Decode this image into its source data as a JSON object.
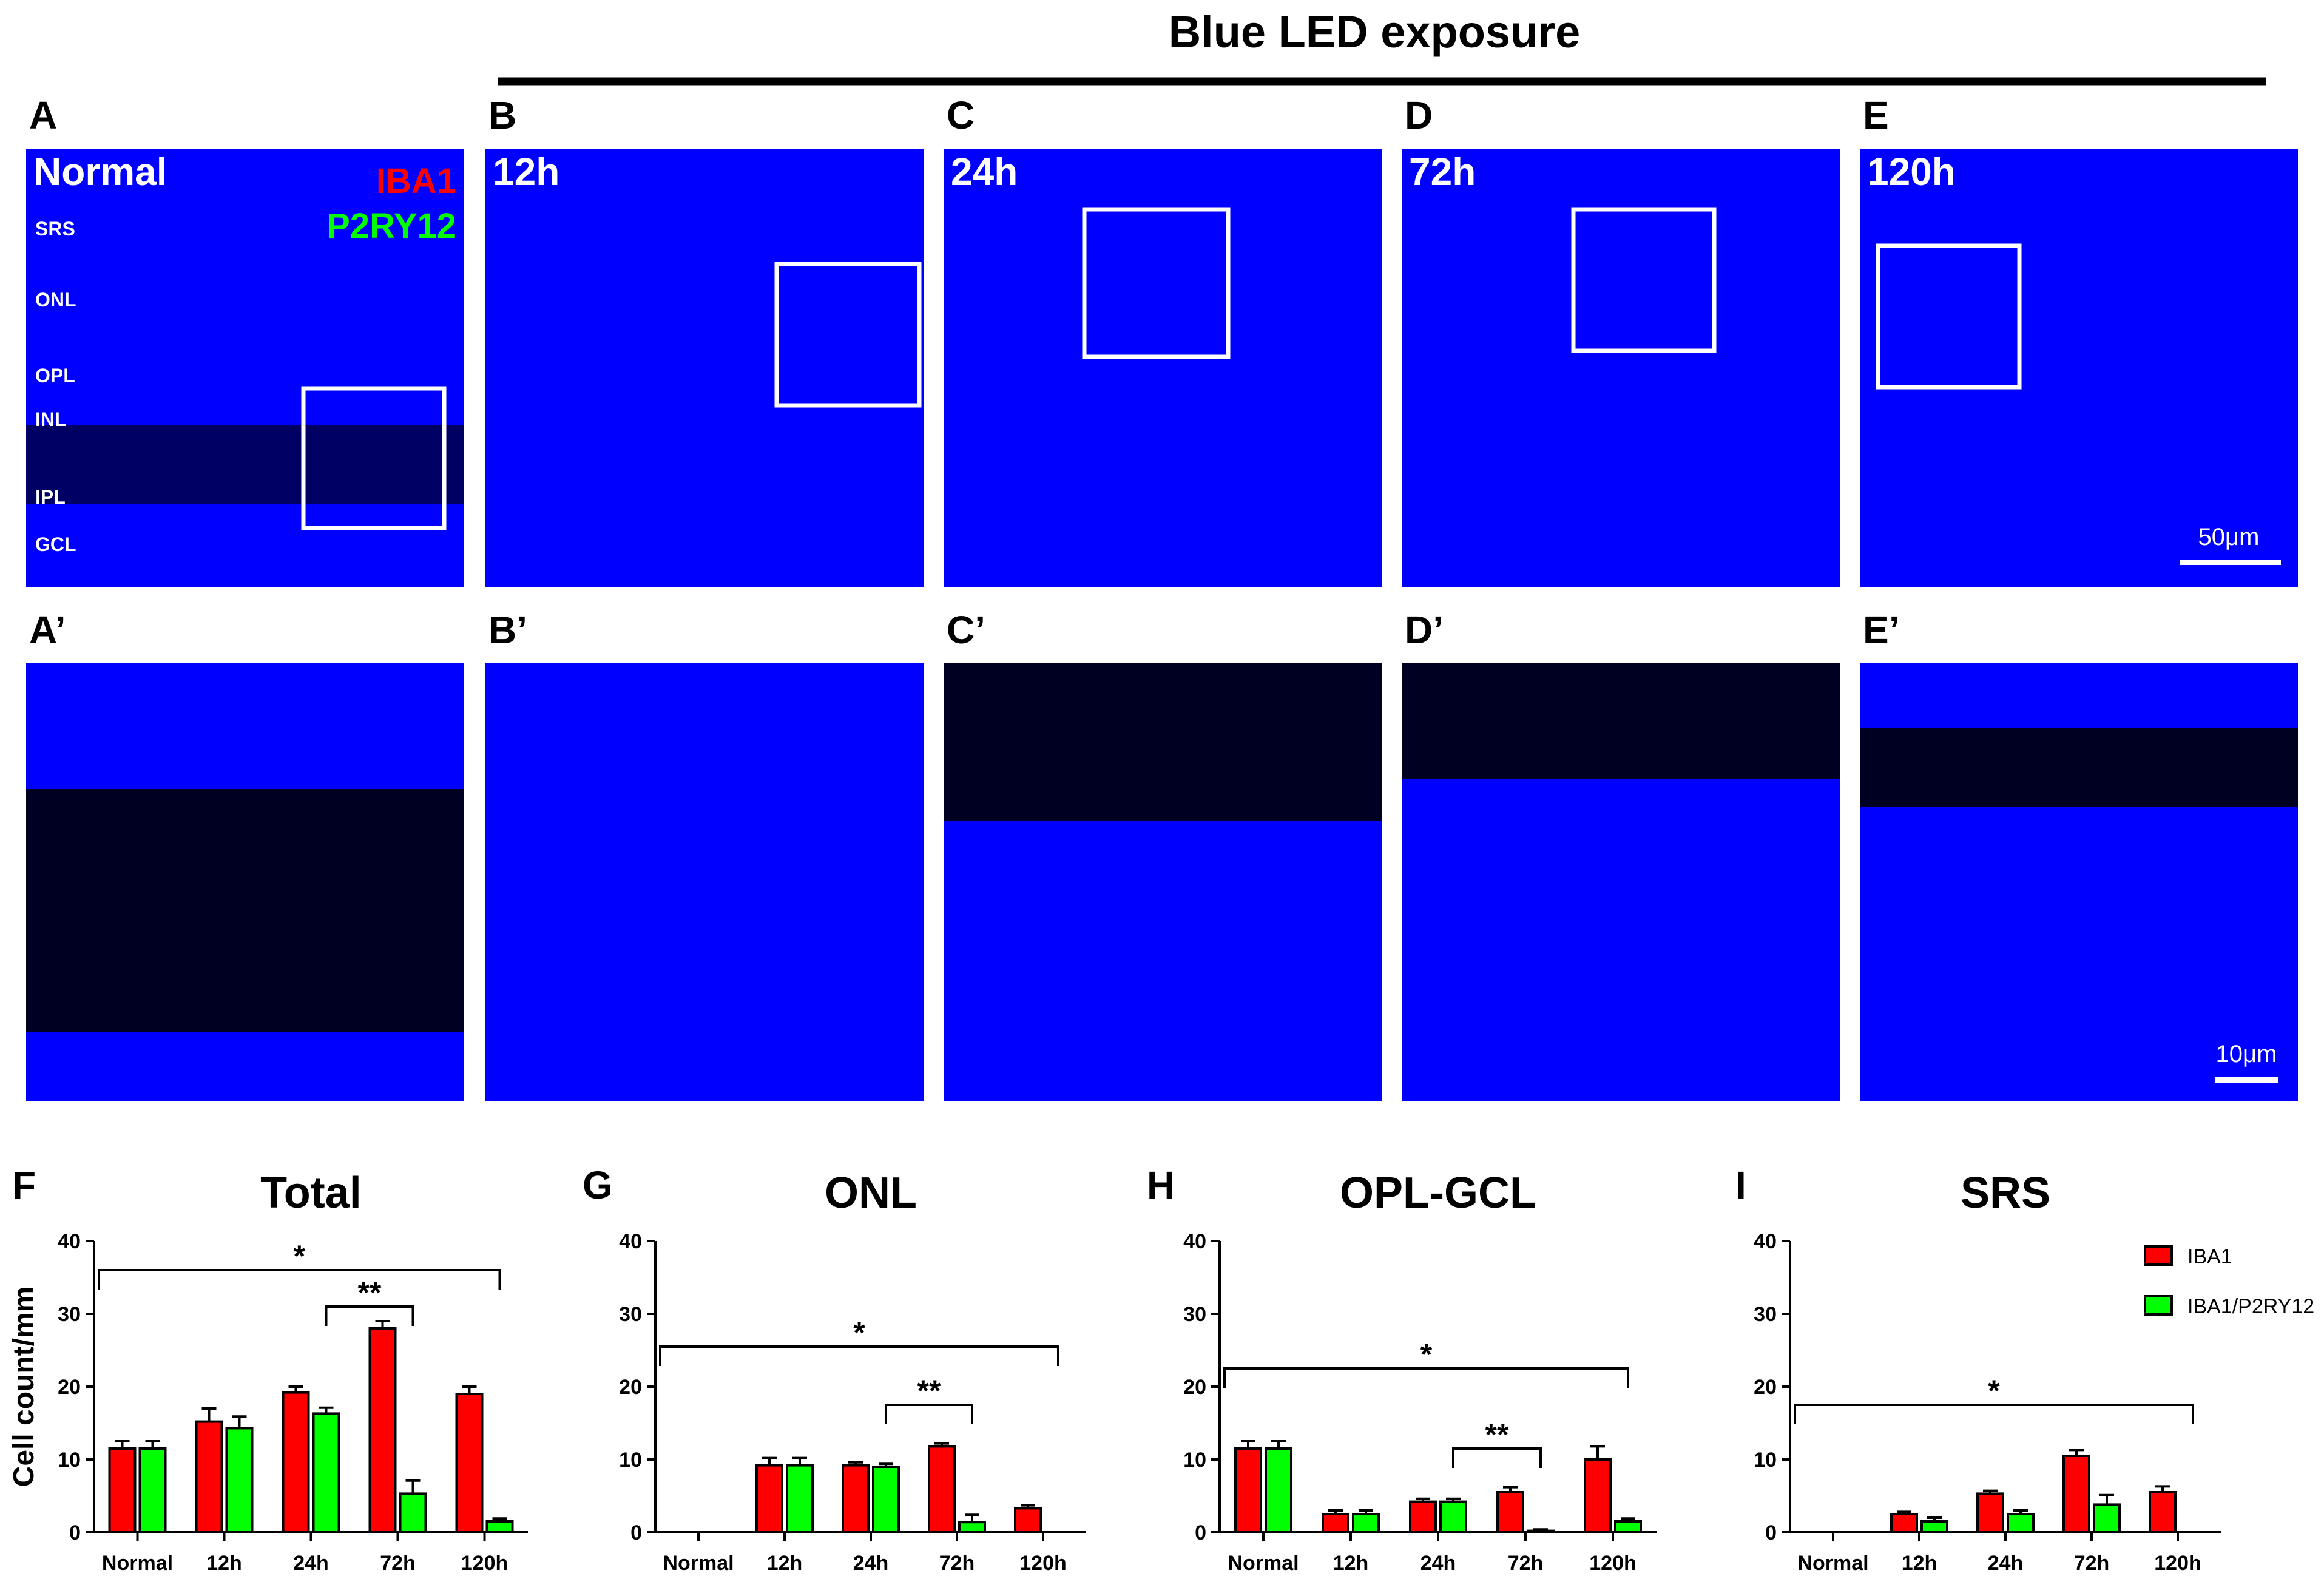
{
  "header": {
    "title": "Blue LED exposure"
  },
  "top_panels": [
    {
      "letter": "A",
      "label": "Normal"
    },
    {
      "letter": "B",
      "label": "12h"
    },
    {
      "letter": "C",
      "label": "24h"
    },
    {
      "letter": "D",
      "label": "72h"
    },
    {
      "letter": "E",
      "label": "120h"
    }
  ],
  "zoom_panels": [
    {
      "letter": "A’"
    },
    {
      "letter": "B’"
    },
    {
      "letter": "C’"
    },
    {
      "letter": "D’"
    },
    {
      "letter": "E’"
    }
  ],
  "stain_legend": {
    "red": "IBA1",
    "green": "P2RY12"
  },
  "layer_labels": [
    "SRS",
    "ONL",
    "OPL",
    "INL",
    "IPL",
    "GCL"
  ],
  "scale_bars": {
    "top": "50μm",
    "zoom": "10μm"
  },
  "colors": {
    "background": "#0000ff",
    "iba1": "#ff0000",
    "iba1_p2ry12": "#00ff00",
    "text": "#000000"
  },
  "chart_data": [
    {
      "panel": "F",
      "type": "bar",
      "title": "Total",
      "ylabel": "Cell count/mm",
      "categories": [
        "Normal",
        "12h",
        "24h",
        "72h",
        "120h"
      ],
      "yticks": [
        "0",
        "10",
        "20",
        "30",
        "40"
      ],
      "ylim": [
        0,
        40
      ],
      "series": [
        {
          "name": "IBA1",
          "values": [
            11.5,
            15.2,
            19.2,
            28.0,
            19.0
          ],
          "errors": [
            1.0,
            1.8,
            0.8,
            1.0,
            1.0
          ]
        },
        {
          "name": "IBA1/P2RY12",
          "values": [
            11.5,
            14.3,
            16.3,
            5.3,
            1.5
          ],
          "errors": [
            1.0,
            1.6,
            0.8,
            1.8,
            0.4
          ]
        }
      ],
      "significance": [
        {
          "label": "*",
          "from": "Normal",
          "to": "120h",
          "y": 36
        },
        {
          "label": "**",
          "from": "24h",
          "to": "72h",
          "y": 31
        }
      ]
    },
    {
      "panel": "G",
      "type": "bar",
      "title": "ONL",
      "ylabel": "",
      "categories": [
        "Normal",
        "12h",
        "24h",
        "72h",
        "120h"
      ],
      "yticks": [
        "0",
        "10",
        "20",
        "30",
        "40"
      ],
      "ylim": [
        0,
        40
      ],
      "series": [
        {
          "name": "IBA1",
          "values": [
            0,
            9.2,
            9.2,
            11.8,
            3.3
          ],
          "errors": [
            0,
            1.0,
            0.4,
            0.4,
            0.4
          ]
        },
        {
          "name": "IBA1/P2RY12",
          "values": [
            0,
            9.2,
            9.0,
            1.4,
            0
          ],
          "errors": [
            0,
            1.0,
            0.4,
            1.0,
            0
          ]
        }
      ],
      "significance": [
        {
          "label": "*",
          "from": "Normal",
          "to": "120h",
          "y": 25.5
        },
        {
          "label": "**",
          "from": "24h",
          "to": "72h",
          "y": 17.5
        }
      ]
    },
    {
      "panel": "H",
      "type": "bar",
      "title": "OPL-GCL",
      "ylabel": "",
      "categories": [
        "Normal",
        "12h",
        "24h",
        "72h",
        "120h"
      ],
      "yticks": [
        "0",
        "10",
        "20",
        "30",
        "40"
      ],
      "ylim": [
        0,
        40
      ],
      "series": [
        {
          "name": "IBA1",
          "values": [
            11.5,
            2.5,
            4.2,
            5.5,
            10.0
          ],
          "errors": [
            1.0,
            0.5,
            0.4,
            0.7,
            1.8
          ]
        },
        {
          "name": "IBA1/P2RY12",
          "values": [
            11.5,
            2.5,
            4.2,
            0.2,
            1.5
          ],
          "errors": [
            1.0,
            0.5,
            0.4,
            0.2,
            0.4
          ]
        }
      ],
      "significance": [
        {
          "label": "*",
          "from": "Normal",
          "to": "120h",
          "y": 22.5
        },
        {
          "label": "**",
          "from": "24h",
          "to": "72h",
          "y": 11.5
        }
      ]
    },
    {
      "panel": "I",
      "type": "bar",
      "title": "SRS",
      "ylabel": "",
      "categories": [
        "Normal",
        "12h",
        "24h",
        "72h",
        "120h"
      ],
      "yticks": [
        "0",
        "10",
        "20",
        "30",
        "40"
      ],
      "ylim": [
        0,
        40
      ],
      "series": [
        {
          "name": "IBA1",
          "values": [
            0,
            2.5,
            5.3,
            10.5,
            5.5
          ],
          "errors": [
            0,
            0.3,
            0.4,
            0.8,
            0.8
          ]
        },
        {
          "name": "IBA1/P2RY12",
          "values": [
            0,
            1.5,
            2.5,
            3.8,
            0
          ],
          "errors": [
            0,
            0.5,
            0.5,
            1.3,
            0
          ]
        }
      ],
      "significance": [
        {
          "label": "*",
          "from": "Normal",
          "to": "120h",
          "y": 17.5
        }
      ],
      "legend": {
        "placement": "top-right"
      }
    }
  ]
}
